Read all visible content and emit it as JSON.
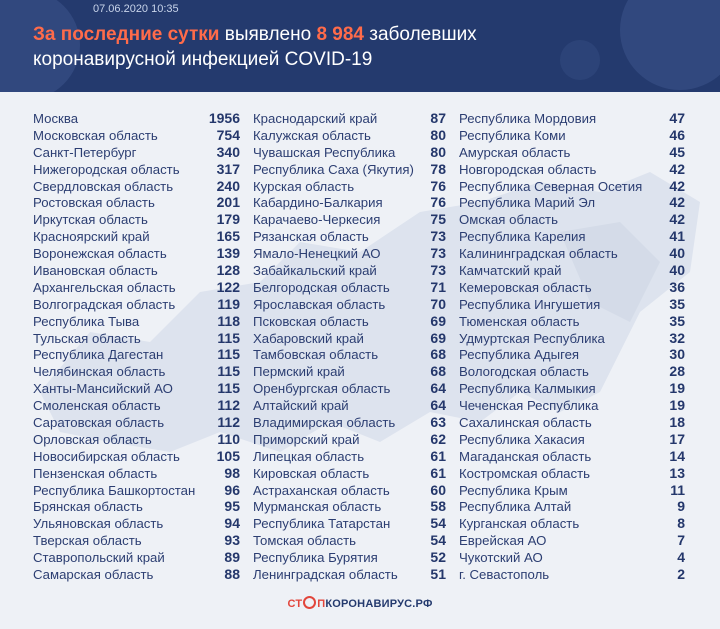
{
  "header": {
    "date": "07.06.2020 10:35",
    "title_accent_1": "За последние сутки",
    "title_mid": " выявлено ",
    "title_accent_2": "8 984",
    "title_end": " заболевших",
    "title_line2": "коронавирусной инфекцией COVID-19"
  },
  "columns": [
    [
      {
        "name": "Москва",
        "value": "1956"
      },
      {
        "name": "Московская область",
        "value": "754"
      },
      {
        "name": "Санкт-Петербург",
        "value": "340"
      },
      {
        "name": "Нижегородская область",
        "value": "317"
      },
      {
        "name": "Свердловская область",
        "value": "240"
      },
      {
        "name": "Ростовская область",
        "value": "201"
      },
      {
        "name": "Иркутская область",
        "value": "179"
      },
      {
        "name": "Красноярский край",
        "value": "165"
      },
      {
        "name": "Воронежская область",
        "value": "139"
      },
      {
        "name": "Ивановская область",
        "value": "128"
      },
      {
        "name": "Архангельская область",
        "value": "122"
      },
      {
        "name": "Волгоградская область",
        "value": "119"
      },
      {
        "name": "Республика Тыва",
        "value": "118"
      },
      {
        "name": "Тульская область",
        "value": "115"
      },
      {
        "name": "Республика Дагестан",
        "value": "115"
      },
      {
        "name": "Челябинская область",
        "value": "115"
      },
      {
        "name": "Ханты-Мансийский АО",
        "value": "115"
      },
      {
        "name": "Смоленская область",
        "value": "112"
      },
      {
        "name": "Саратовская область",
        "value": "112"
      },
      {
        "name": "Орловская область",
        "value": "110"
      },
      {
        "name": "Новосибирская область",
        "value": "105"
      },
      {
        "name": "Пензенская область",
        "value": "98"
      },
      {
        "name": "Республика Башкортостан",
        "value": "96"
      },
      {
        "name": "Брянская область",
        "value": "95"
      },
      {
        "name": "Ульяновская область",
        "value": "94"
      },
      {
        "name": "Тверская область",
        "value": "93"
      },
      {
        "name": "Ставропольский край",
        "value": "89"
      },
      {
        "name": "Самарская область",
        "value": "88"
      }
    ],
    [
      {
        "name": "Краснодарский край",
        "value": "87"
      },
      {
        "name": "Калужская область",
        "value": "80"
      },
      {
        "name": "Чувашская Республика",
        "value": "80"
      },
      {
        "name": "Республика Саха (Якутия)",
        "value": "78"
      },
      {
        "name": "Курская область",
        "value": "76"
      },
      {
        "name": "Кабардино-Балкария",
        "value": "76"
      },
      {
        "name": "Карачаево-Черкесия",
        "value": "75"
      },
      {
        "name": "Рязанская область",
        "value": "73"
      },
      {
        "name": "Ямало-Ненецкий АО",
        "value": "73"
      },
      {
        "name": "Забайкальский край",
        "value": "73"
      },
      {
        "name": "Белгородская область",
        "value": "71"
      },
      {
        "name": "Ярославская область",
        "value": "70"
      },
      {
        "name": "Псковская область",
        "value": "69"
      },
      {
        "name": "Хабаровский край",
        "value": "69"
      },
      {
        "name": "Тамбовская область",
        "value": "68"
      },
      {
        "name": "Пермский край",
        "value": "68"
      },
      {
        "name": "Оренбургская область",
        "value": "64"
      },
      {
        "name": "Алтайский край",
        "value": "64"
      },
      {
        "name": "Владимирская область",
        "value": "63"
      },
      {
        "name": "Приморский край",
        "value": "62"
      },
      {
        "name": "Липецкая область",
        "value": "61"
      },
      {
        "name": "Кировская область",
        "value": "61"
      },
      {
        "name": "Астраханская область",
        "value": "60"
      },
      {
        "name": "Мурманская область",
        "value": "58"
      },
      {
        "name": "Республика Татарстан",
        "value": "54"
      },
      {
        "name": "Томская область",
        "value": "54"
      },
      {
        "name": "Республика Бурятия",
        "value": "52"
      },
      {
        "name": "Ленинградская область",
        "value": "51"
      }
    ],
    [
      {
        "name": "Республика Мордовия",
        "value": "47"
      },
      {
        "name": "Республика Коми",
        "value": "46"
      },
      {
        "name": "Амурская область",
        "value": "45"
      },
      {
        "name": "Новгородская область",
        "value": "42"
      },
      {
        "name": "Республика Северная Осетия",
        "value": "42"
      },
      {
        "name": "Республика Марий Эл",
        "value": "42"
      },
      {
        "name": "Омская область",
        "value": "42"
      },
      {
        "name": "Республика Карелия",
        "value": "41"
      },
      {
        "name": "Калининградская область",
        "value": "40"
      },
      {
        "name": "Камчатский край",
        "value": "40"
      },
      {
        "name": "Кемеровская область",
        "value": "36"
      },
      {
        "name": "Республика Ингушетия",
        "value": "35"
      },
      {
        "name": "Тюменская область",
        "value": "35"
      },
      {
        "name": "Удмуртская Республика",
        "value": "32"
      },
      {
        "name": "Республика Адыгея",
        "value": "30"
      },
      {
        "name": "Вологодская область",
        "value": "28"
      },
      {
        "name": "Республика Калмыкия",
        "value": "19"
      },
      {
        "name": "Чеченская Республика",
        "value": "19"
      },
      {
        "name": "Сахалинская область",
        "value": "18"
      },
      {
        "name": "Республика Хакасия",
        "value": "17"
      },
      {
        "name": "Магаданская область",
        "value": "14"
      },
      {
        "name": "Костромская область",
        "value": "13"
      },
      {
        "name": "Республика Крым",
        "value": "11"
      },
      {
        "name": "Республика Алтай",
        "value": "9"
      },
      {
        "name": "Курганская область",
        "value": "8"
      },
      {
        "name": "Еврейская АО",
        "value": "7"
      },
      {
        "name": "Чукотский АО",
        "value": "4"
      },
      {
        "name": "г. Севастополь",
        "value": "2"
      }
    ]
  ],
  "footer": {
    "brand_stop": "СТ",
    "brand_stop_end": "П",
    "brand_rest": "КОРОНАВИРУС.РФ"
  },
  "colors": {
    "header_bg": "#243a6e",
    "accent": "#ff6b4a",
    "text": "#2c3e72"
  }
}
